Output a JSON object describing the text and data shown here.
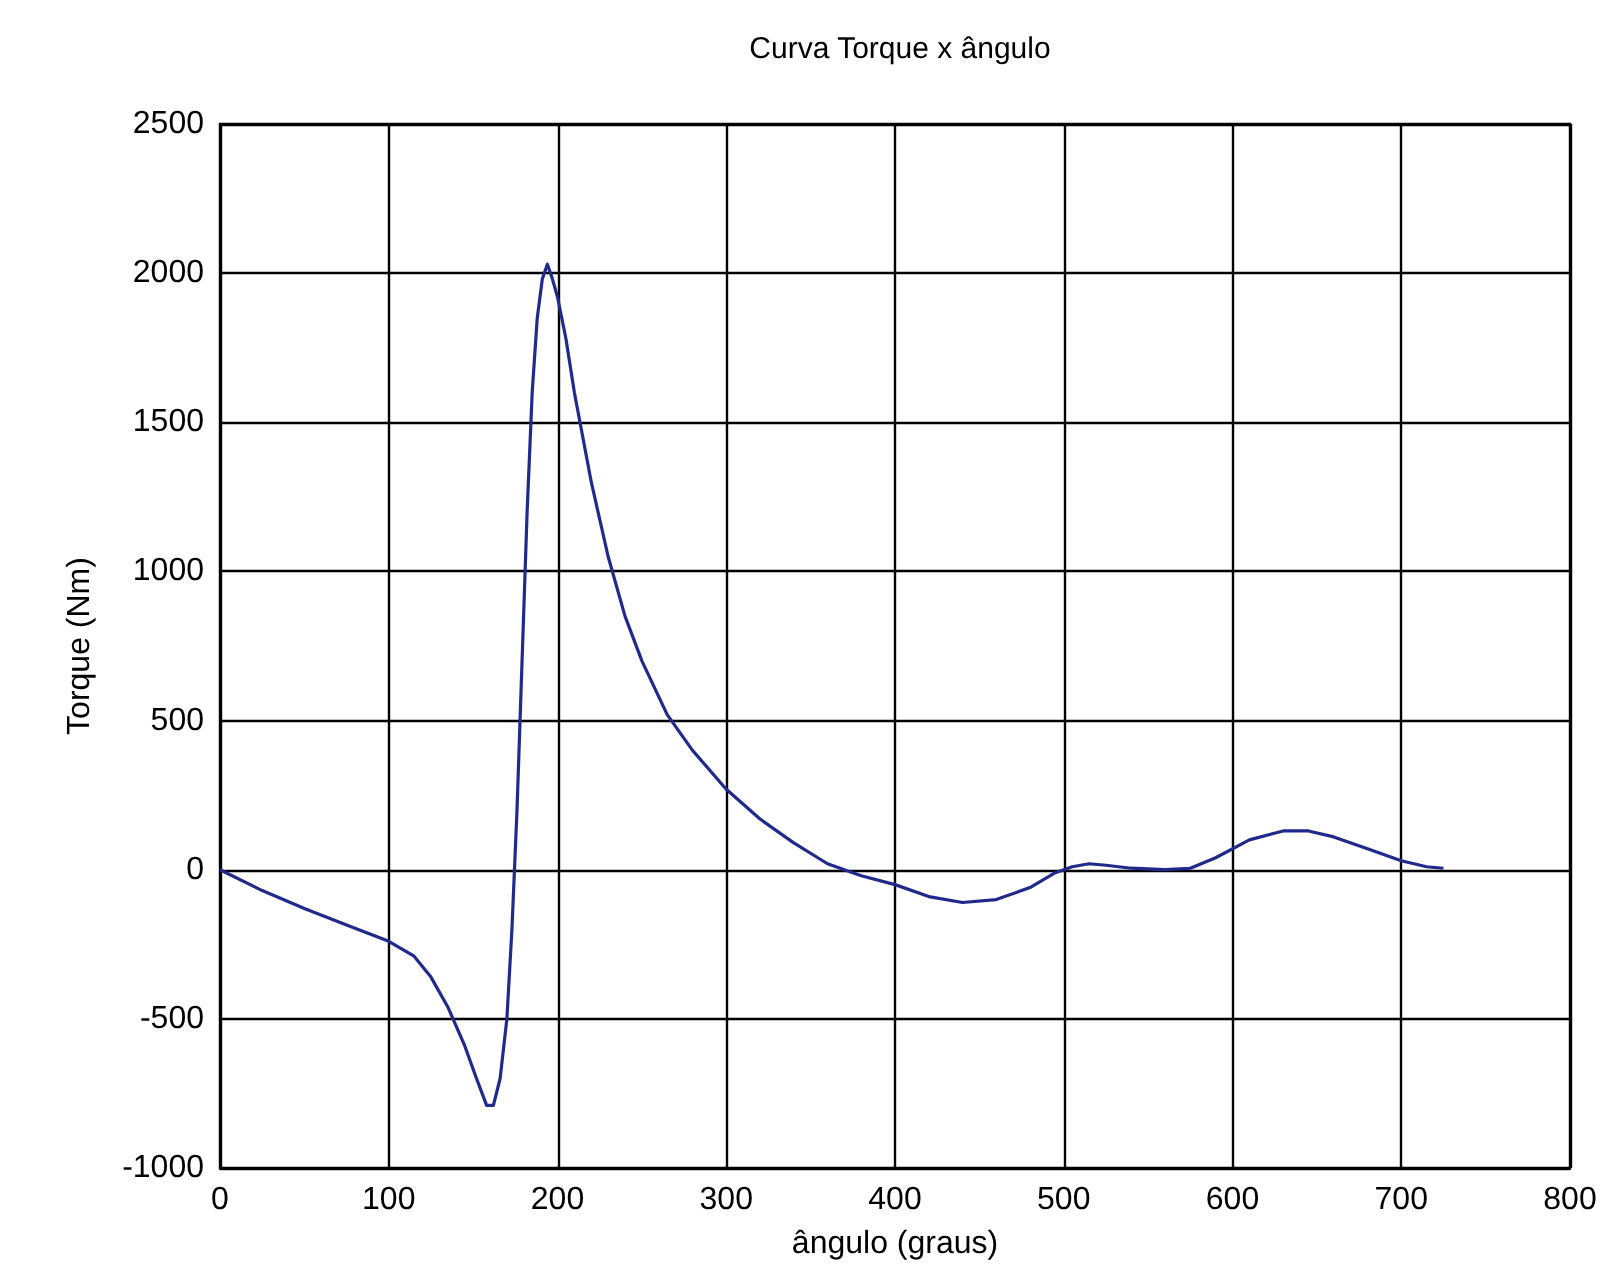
{
  "chart_data": {
    "type": "line",
    "title": "Curva Torque x ângulo",
    "xlabel": "ângulo (graus)",
    "ylabel": "Torque (Nm)",
    "xlim": [
      0,
      800
    ],
    "xticks": [
      0,
      100,
      200,
      300,
      400,
      500,
      600,
      700,
      800
    ],
    "ylim": [
      -1000,
      2500
    ],
    "yticks": [
      -1000,
      -500,
      0,
      500,
      1000,
      1500,
      2000,
      2500
    ],
    "grid": true,
    "marker": "none",
    "line_style": "solid",
    "series": [
      {
        "color": "#1f2a8c",
        "x": [
          0,
          25,
          50,
          75,
          100,
          115,
          125,
          135,
          145,
          152,
          158,
          162,
          166,
          170,
          173,
          176,
          179,
          182,
          185,
          188,
          191,
          194,
          197,
          200,
          205,
          210,
          220,
          230,
          240,
          250,
          265,
          280,
          300,
          320,
          340,
          360,
          380,
          400,
          420,
          440,
          460,
          480,
          495,
          505,
          515,
          525,
          540,
          560,
          575,
          590,
          610,
          630,
          645,
          660,
          680,
          700,
          715,
          725
        ],
        "values": [
          0,
          -70,
          -130,
          -185,
          -240,
          -290,
          -360,
          -460,
          -590,
          -700,
          -790,
          -790,
          -700,
          -500,
          -200,
          200,
          700,
          1200,
          1600,
          1850,
          1980,
          2030,
          1980,
          1920,
          1780,
          1600,
          1300,
          1050,
          850,
          700,
          520,
          400,
          270,
          170,
          90,
          20,
          -20,
          -50,
          -90,
          -110,
          -100,
          -60,
          -10,
          10,
          20,
          15,
          5,
          0,
          5,
          40,
          100,
          130,
          130,
          110,
          70,
          30,
          10,
          5
        ]
      }
    ]
  }
}
